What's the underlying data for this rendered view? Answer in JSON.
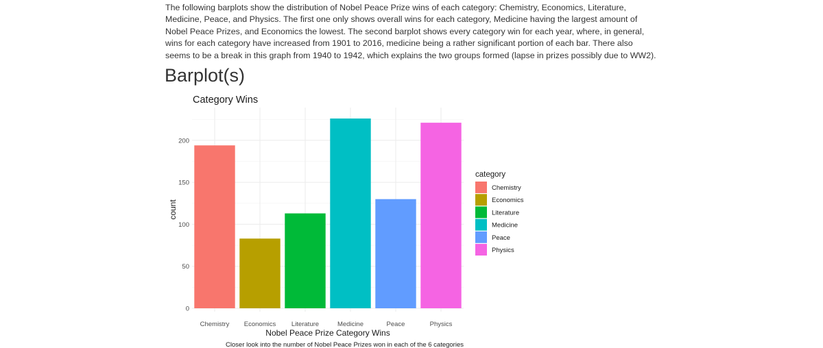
{
  "intro_text": "The following barplots show the distribution of Nobel Peace Prize wins of each category: Chemistry, Economics, Literature, Medicine, Peace, and Physics. The first one only shows overall wins for each category, Medicine having the largest amount of Nobel Peace Prizes, and Economics the lowest. The second barplot shows every category win for each year, where, in general, wins for each category have increased from 1901 to 2016, medicine being a rather significant portion of each bar. There also seems to be a break in this graph from 1940 to 1942, which explains the two groups formed (lapse in prizes possibly due to WW2).",
  "section_heading": "Barplot(s)",
  "chart_data": {
    "type": "bar",
    "title": "Category Wins",
    "xlabel": "Nobel Peace Prize Category Wins",
    "ylabel": "count",
    "caption": "Closer look into the number of Nobel Peace Prizes won in each of the 6 categories",
    "categories": [
      "Chemistry",
      "Economics",
      "Literature",
      "Medicine",
      "Peace",
      "Physics"
    ],
    "values": [
      194,
      83,
      113,
      226,
      130,
      221
    ],
    "colors": [
      "#F8766D",
      "#B79F00",
      "#00BA38",
      "#00BFC4",
      "#619CFF",
      "#F564E3"
    ],
    "ylim": [
      0,
      236
    ],
    "yticks": [
      0,
      50,
      100,
      150,
      200
    ],
    "grid": true,
    "legend": {
      "title": "category",
      "position": "right",
      "entries": [
        "Chemistry",
        "Economics",
        "Literature",
        "Medicine",
        "Peace",
        "Physics"
      ]
    }
  }
}
